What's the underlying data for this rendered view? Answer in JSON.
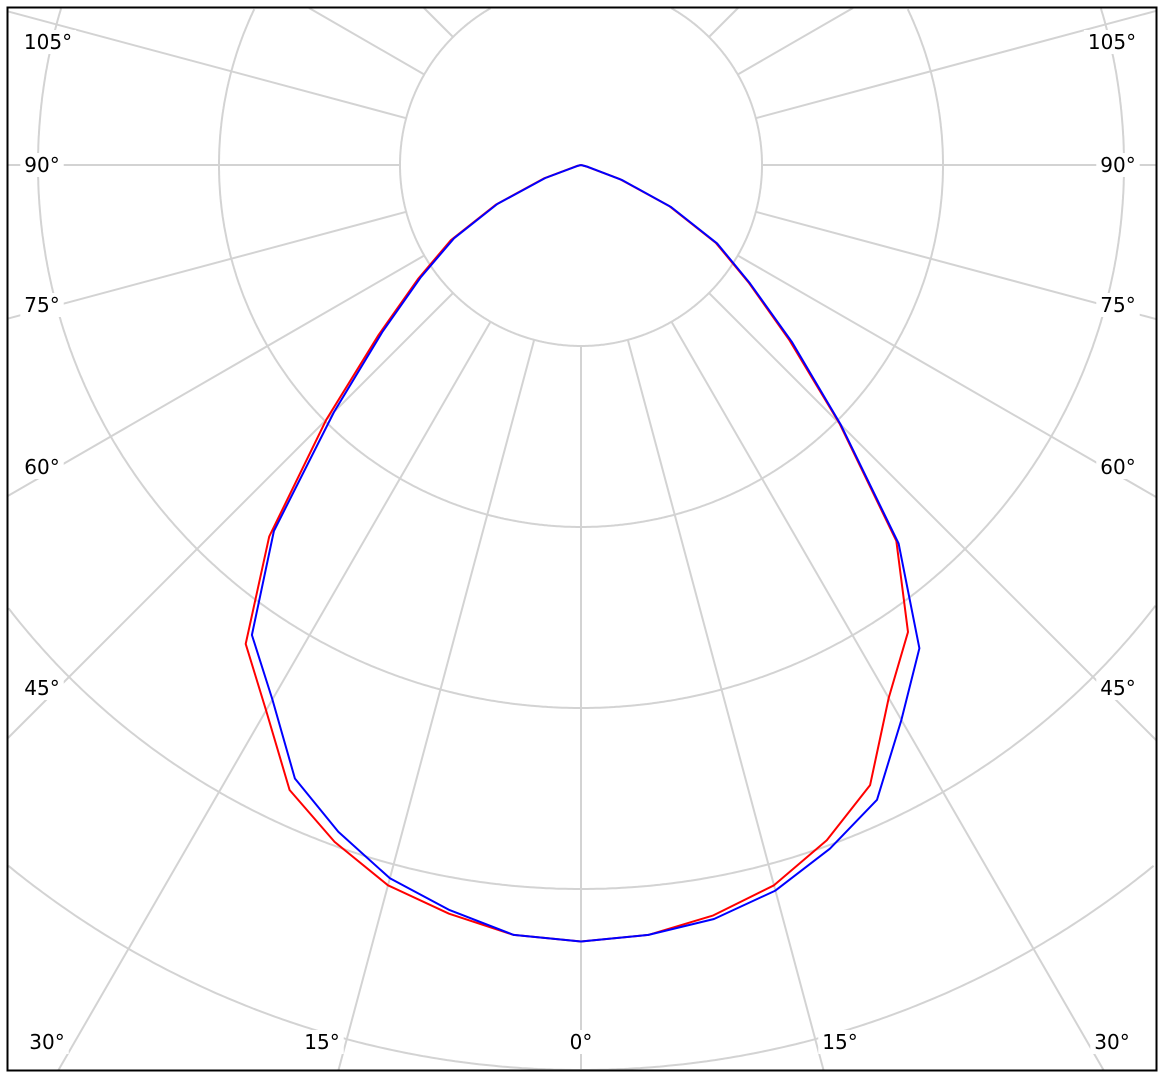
{
  "chart_data": {
    "type": "polar",
    "title": "",
    "angle_unit": "degrees",
    "zero_direction": "down",
    "grid": true,
    "angular_grid_step": 15,
    "rings": 6,
    "angles": [
      0,
      5,
      10,
      15,
      20,
      25,
      30,
      35,
      40,
      45,
      50,
      55,
      60,
      65,
      70,
      75,
      80,
      85,
      90
    ],
    "angle_labels": [
      "105°",
      "90°",
      "75°",
      "60°",
      "45°",
      "30°",
      "15°",
      "0°",
      "15°",
      "30°",
      "45°",
      "60°",
      "75°",
      "90°",
      "105°"
    ],
    "series": [
      {
        "color": "#ff0000",
        "left": [
          4.29,
          4.27,
          4.2,
          4.12,
          3.98,
          3.81,
          3.48,
          3.23,
          2.68,
          1.99,
          1.46,
          1.1,
          0.83,
          0.52,
          0.22,
          0.03,
          0,
          0,
          0
        ],
        "right": [
          4.29,
          4.27,
          4.21,
          4.12,
          3.97,
          3.78,
          3.4,
          3.15,
          2.71,
          2.02,
          1.5,
          1.13,
          0.86,
          0.54,
          0.23,
          0.03,
          0,
          0,
          0
        ]
      },
      {
        "color": "#0000ff",
        "left": [
          4.29,
          4.27,
          4.18,
          4.08,
          3.92,
          3.74,
          3.41,
          3.17,
          2.64,
          1.93,
          1.43,
          1.08,
          0.81,
          0.51,
          0.21,
          0.02,
          0,
          0,
          0
        ],
        "right": [
          4.29,
          4.27,
          4.23,
          4.15,
          4.02,
          3.87,
          3.54,
          3.26,
          2.73,
          2.03,
          1.52,
          1.14,
          0.87,
          0.55,
          0.24,
          0.04,
          0,
          0,
          0
        ]
      }
    ],
    "grid_color": "#d3d3d3"
  }
}
